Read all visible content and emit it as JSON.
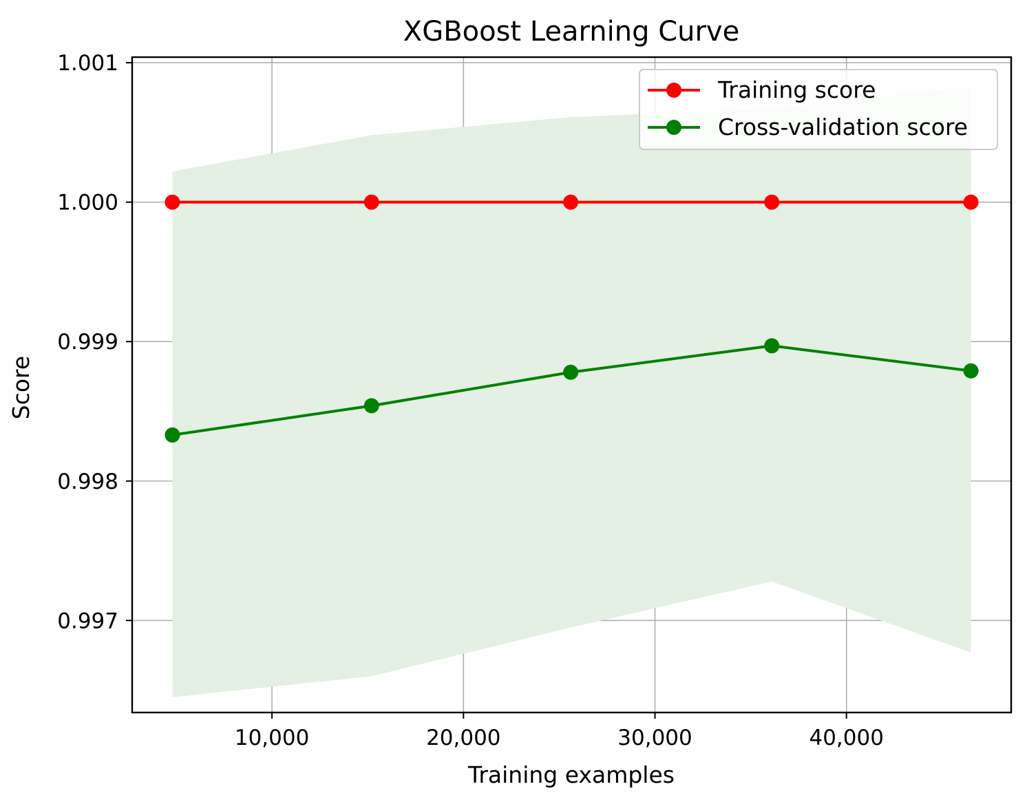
{
  "chart_data": {
    "type": "line",
    "title": "XGBoost Learning Curve",
    "xlabel": "Training examples",
    "ylabel": "Score",
    "xlim": [
      2700,
      48600
    ],
    "ylim": [
      0.99634,
      1.00104
    ],
    "x_ticks": [
      {
        "value": 10000,
        "label": "10,000"
      },
      {
        "value": 20000,
        "label": "20,000"
      },
      {
        "value": 30000,
        "label": "30,000"
      },
      {
        "value": 40000,
        "label": "40,000"
      }
    ],
    "y_ticks": [
      {
        "value": 0.997,
        "label": "0.997"
      },
      {
        "value": 0.998,
        "label": "0.998"
      },
      {
        "value": 0.999,
        "label": "0.999"
      },
      {
        "value": 1.0,
        "label": "1.000"
      },
      {
        "value": 1.001,
        "label": "1.001"
      }
    ],
    "grid": true,
    "legend_position": "top-right",
    "x": [
      4800,
      15200,
      25600,
      36100,
      46500
    ],
    "series": [
      {
        "name": "Training score",
        "color": "#ff0000",
        "values": [
          1.0,
          1.0,
          1.0,
          1.0,
          1.0
        ]
      },
      {
        "name": "Cross-validation score",
        "color": "#008000",
        "values": [
          0.99833,
          0.99854,
          0.99878,
          0.99897,
          0.99879
        ],
        "band_upper": [
          1.00022,
          1.00048,
          1.00061,
          1.00067,
          1.00083
        ],
        "band_lower": [
          0.99645,
          0.9966,
          0.99695,
          0.99728,
          0.99677
        ],
        "band_color": "#e4f0e4"
      }
    ]
  }
}
